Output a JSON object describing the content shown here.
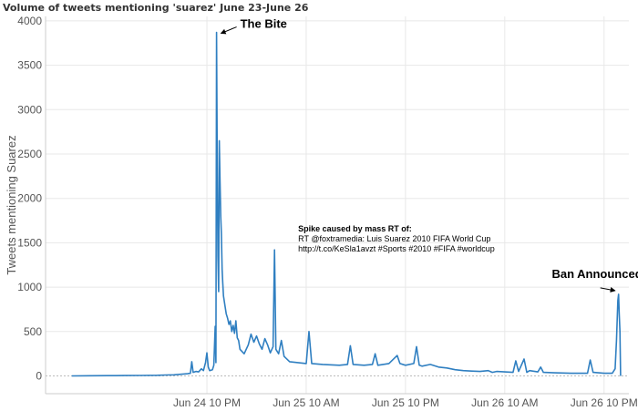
{
  "chart_data": {
    "type": "line",
    "title": "Volume of tweets mentioning 'suarez' June 23-June 26",
    "xlabel": "",
    "ylabel": "Tweets mentioning Suarez",
    "ylim": [
      -200,
      4050
    ],
    "xlim": [
      "2014-06-24 02:30",
      "2014-06-27 01:00"
    ],
    "y_ticks": [
      0,
      500,
      1000,
      1500,
      2000,
      2500,
      3000,
      3500,
      4000
    ],
    "x_ticks": [
      {
        "t": "2014-06-24 22:00",
        "label": "Jun 24 10 PM"
      },
      {
        "t": "2014-06-25 10:00",
        "label": "Jun 25 10 AM"
      },
      {
        "t": "2014-06-25 22:00",
        "label": "Jun 25 10 PM"
      },
      {
        "t": "2014-06-26 10:00",
        "label": "Jun 26 10 AM"
      },
      {
        "t": "2014-06-26 22:00",
        "label": "Jun 26 10 PM"
      }
    ],
    "grid": true,
    "color": "#2f7fc1",
    "series": [
      {
        "points": [
          [
            "2014-06-24 05:40",
            0
          ],
          [
            "2014-06-24 08:00",
            2
          ],
          [
            "2014-06-24 10:00",
            3
          ],
          [
            "2014-06-24 12:00",
            4
          ],
          [
            "2014-06-24 14:00",
            5
          ],
          [
            "2014-06-24 16:00",
            7
          ],
          [
            "2014-06-24 17:00",
            10
          ],
          [
            "2014-06-24 18:00",
            12
          ],
          [
            "2014-06-24 19:00",
            20
          ],
          [
            "2014-06-24 19:40",
            25
          ],
          [
            "2014-06-24 20:00",
            30
          ],
          [
            "2014-06-24 20:10",
            160
          ],
          [
            "2014-06-24 20:20",
            40
          ],
          [
            "2014-06-24 20:40",
            50
          ],
          [
            "2014-06-24 21:00",
            45
          ],
          [
            "2014-06-24 21:20",
            80
          ],
          [
            "2014-06-24 21:35",
            60
          ],
          [
            "2014-06-24 21:50",
            150
          ],
          [
            "2014-06-24 22:00",
            260
          ],
          [
            "2014-06-24 22:10",
            100
          ],
          [
            "2014-06-24 22:20",
            60
          ],
          [
            "2014-06-24 22:40",
            70
          ],
          [
            "2014-06-24 22:50",
            120
          ],
          [
            "2014-06-24 23:00",
            560
          ],
          [
            "2014-06-24 23:05",
            150
          ],
          [
            "2014-06-24 23:10",
            3870
          ],
          [
            "2014-06-24 23:15",
            2300
          ],
          [
            "2014-06-24 23:20",
            1350
          ],
          [
            "2014-06-24 23:25",
            950
          ],
          [
            "2014-06-24 23:30",
            2650
          ],
          [
            "2014-06-24 23:35",
            2200
          ],
          [
            "2014-06-24 23:40",
            1800
          ],
          [
            "2014-06-24 23:45",
            1600
          ],
          [
            "2014-06-24 23:50",
            1200
          ],
          [
            "2014-06-24 23:55",
            1050
          ],
          [
            "2014-06-25 00:00",
            900
          ],
          [
            "2014-06-25 00:10",
            800
          ],
          [
            "2014-06-25 00:20",
            700
          ],
          [
            "2014-06-25 00:30",
            650
          ],
          [
            "2014-06-25 00:40",
            580
          ],
          [
            "2014-06-25 00:50",
            620
          ],
          [
            "2014-06-25 01:00",
            500
          ],
          [
            "2014-06-25 01:10",
            570
          ],
          [
            "2014-06-25 01:20",
            480
          ],
          [
            "2014-06-25 01:30",
            620
          ],
          [
            "2014-06-25 01:40",
            430
          ],
          [
            "2014-06-25 01:50",
            400
          ],
          [
            "2014-06-25 02:00",
            300
          ],
          [
            "2014-06-25 02:30",
            250
          ],
          [
            "2014-06-25 03:00",
            350
          ],
          [
            "2014-06-25 03:20",
            470
          ],
          [
            "2014-06-25 03:40",
            380
          ],
          [
            "2014-06-25 04:00",
            450
          ],
          [
            "2014-06-25 04:20",
            360
          ],
          [
            "2014-06-25 04:40",
            300
          ],
          [
            "2014-06-25 05:00",
            420
          ],
          [
            "2014-06-25 05:20",
            350
          ],
          [
            "2014-06-25 05:40",
            260
          ],
          [
            "2014-06-25 06:00",
            330
          ],
          [
            "2014-06-25 06:10",
            1420
          ],
          [
            "2014-06-25 06:20",
            300
          ],
          [
            "2014-06-25 06:40",
            250
          ],
          [
            "2014-06-25 07:00",
            400
          ],
          [
            "2014-06-25 07:20",
            220
          ],
          [
            "2014-06-25 08:00",
            160
          ],
          [
            "2014-06-25 09:00",
            150
          ],
          [
            "2014-06-25 10:00",
            140
          ],
          [
            "2014-06-25 10:20",
            500
          ],
          [
            "2014-06-25 10:40",
            140
          ],
          [
            "2014-06-25 12:00",
            130
          ],
          [
            "2014-06-25 14:00",
            120
          ],
          [
            "2014-06-25 15:00",
            130
          ],
          [
            "2014-06-25 15:20",
            340
          ],
          [
            "2014-06-25 15:40",
            130
          ],
          [
            "2014-06-25 17:00",
            120
          ],
          [
            "2014-06-25 18:00",
            130
          ],
          [
            "2014-06-25 18:20",
            250
          ],
          [
            "2014-06-25 18:40",
            120
          ],
          [
            "2014-06-25 20:00",
            140
          ],
          [
            "2014-06-25 21:00",
            230
          ],
          [
            "2014-06-25 21:20",
            140
          ],
          [
            "2014-06-25 22:00",
            120
          ],
          [
            "2014-06-25 23:00",
            140
          ],
          [
            "2014-06-25 23:20",
            330
          ],
          [
            "2014-06-25 23:40",
            120
          ],
          [
            "2014-06-26 00:00",
            110
          ],
          [
            "2014-06-26 01:00",
            130
          ],
          [
            "2014-06-26 02:00",
            100
          ],
          [
            "2014-06-26 03:00",
            90
          ],
          [
            "2014-06-26 04:00",
            70
          ],
          [
            "2014-06-26 05:00",
            60
          ],
          [
            "2014-06-26 06:00",
            55
          ],
          [
            "2014-06-26 07:00",
            50
          ],
          [
            "2014-06-26 08:00",
            60
          ],
          [
            "2014-06-26 08:30",
            40
          ],
          [
            "2014-06-26 09:00",
            50
          ],
          [
            "2014-06-26 10:00",
            45
          ],
          [
            "2014-06-26 11:00",
            40
          ],
          [
            "2014-06-26 11:20",
            170
          ],
          [
            "2014-06-26 11:40",
            50
          ],
          [
            "2014-06-26 12:20",
            190
          ],
          [
            "2014-06-26 12:40",
            40
          ],
          [
            "2014-06-26 13:00",
            60
          ],
          [
            "2014-06-26 14:00",
            45
          ],
          [
            "2014-06-26 14:20",
            100
          ],
          [
            "2014-06-26 14:40",
            40
          ],
          [
            "2014-06-26 16:00",
            35
          ],
          [
            "2014-06-26 18:00",
            30
          ],
          [
            "2014-06-26 20:00",
            30
          ],
          [
            "2014-06-26 20:20",
            180
          ],
          [
            "2014-06-26 20:40",
            40
          ],
          [
            "2014-06-26 22:00",
            30
          ],
          [
            "2014-06-26 23:00",
            30
          ],
          [
            "2014-06-26 23:20",
            80
          ],
          [
            "2014-06-26 23:30",
            400
          ],
          [
            "2014-06-26 23:40",
            850
          ],
          [
            "2014-06-26 23:45",
            920
          ],
          [
            "2014-06-26 23:50",
            700
          ],
          [
            "2014-06-26 23:55",
            500
          ],
          [
            "2014-06-27 00:00",
            0
          ]
        ]
      }
    ],
    "annotations": [
      {
        "text": "The Bite",
        "t": "2014-06-24 23:10",
        "y": 3870,
        "bold": true
      },
      {
        "text": "Spike caused by mass RT of:",
        "t": "2014-06-25 06:10",
        "y": 1420,
        "bold": true,
        "lines": [
          "RT @foxtramedia: Luis Suarez 2010 FIFA World Cup",
          "http://t.co/KeSla1avzt #Sports #2010 #FIFA #worldcup"
        ]
      },
      {
        "text": "Ban Announced",
        "t": "2014-06-26 23:45",
        "y": 920,
        "bold": true
      }
    ]
  }
}
